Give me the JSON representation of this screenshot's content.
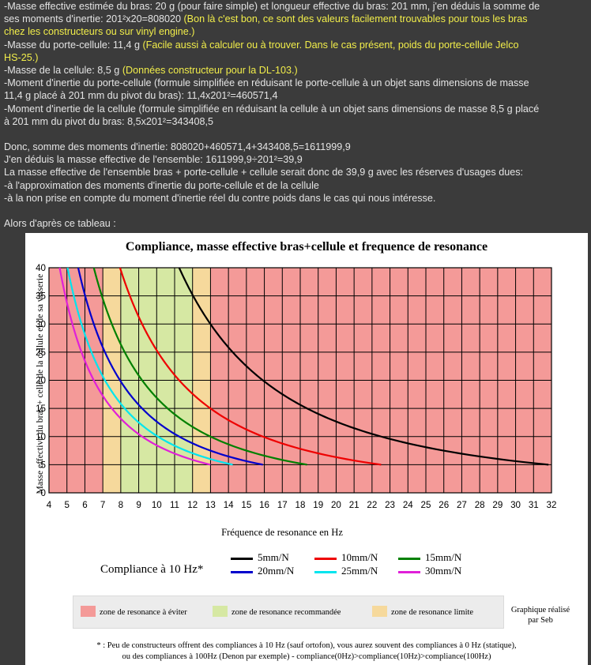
{
  "forum_text": [
    [
      {
        "t": "-Masse effective estimée du bras: 20 g (pour faire simple) et longueur effective du bras: 201 mm, j'en déduis la somme de",
        "hl": false
      }
    ],
    [
      {
        "t": "ses moments d'inertie: 201²x20=808020 ",
        "hl": false
      },
      {
        "t": "(Bon là c'est bon, ce sont des valeurs facilement trouvables pour tous les bras",
        "hl": true
      }
    ],
    [
      {
        "t": "chez les constructeurs ou sur vinyl engine.)",
        "hl": true
      }
    ],
    [
      {
        "t": "-Masse du porte-cellule: 11,4 g ",
        "hl": false
      },
      {
        "t": "(Facile aussi à calculer ou à trouver. Dans le cas présent, poids du porte-cellule Jelco",
        "hl": true
      }
    ],
    [
      {
        "t": "HS-25.)",
        "hl": true
      }
    ],
    [
      {
        "t": "-Masse de la cellule: 8,5 g ",
        "hl": false
      },
      {
        "t": "(Données constructeur pour la DL-103.)",
        "hl": true
      }
    ],
    [
      {
        "t": "-Moment d'inertie du porte-cellule (formule simplifiée en réduisant le porte-cellule à un objet sans dimensions de masse",
        "hl": false
      }
    ],
    [
      {
        "t": "11,4 g placé à 201 mm du pivot du bras): 11,4x201²=460571,4",
        "hl": false
      }
    ],
    [
      {
        "t": "-Moment d'inertie de la cellule (formule simplifiée en réduisant la cellule à un objet sans dimensions de masse 8,5 g placé",
        "hl": false
      }
    ],
    [
      {
        "t": "à 201 mm du pivot du bras: 8,5x201²=343408,5",
        "hl": false
      }
    ],
    [
      {
        "t": "",
        "hl": false
      }
    ],
    [
      {
        "t": "Donc, somme des moments d'inertie: 808020+460571,4+343408,5=1611999,9",
        "hl": false
      }
    ],
    [
      {
        "t": "J'en déduis la masse effective de l'ensemble: 1611999,9÷201²=39,9",
        "hl": false
      }
    ],
    [
      {
        "t": "La masse effective de l'ensemble bras + porte-cellule + cellule serait donc de 39,9 g avec les réserves d'usages dues:",
        "hl": false
      }
    ],
    [
      {
        "t": "-à l'approximation des moments d'inertie du porte-cellule et de la cellule",
        "hl": false
      }
    ],
    [
      {
        "t": "-à la non prise en compte du moment d'inertie réel du contre poids dans le cas qui nous intéresse.",
        "hl": false
      }
    ],
    [
      {
        "t": "",
        "hl": false
      }
    ],
    [
      {
        "t": "Alors d'après ce tableau :",
        "hl": false
      }
    ]
  ],
  "colors": {
    "forum_bg": "#3b3b3b",
    "forum_text": "#e4e4e4",
    "highlight": "#f2ee4a",
    "zone_avoid": "#f49a98",
    "zone_recommended": "#d6e8a3",
    "zone_limit": "#f6d99c"
  },
  "chart_data": {
    "type": "line",
    "title": "Compliance, masse effective bras+cellule et frequence de resonance",
    "xlabel": "Fréquence de resonance en Hz",
    "ylabel": "Masse effective du bras + celle de la cellule et de sa visserie",
    "xlim": [
      4,
      32
    ],
    "ylim": [
      0,
      40
    ],
    "x_ticks": [
      4,
      5,
      6,
      7,
      8,
      9,
      10,
      11,
      12,
      13,
      14,
      15,
      16,
      17,
      18,
      19,
      20,
      21,
      22,
      23,
      24,
      25,
      26,
      27,
      28,
      29,
      30,
      31,
      32
    ],
    "y_ticks": [
      0,
      5,
      10,
      15,
      20,
      25,
      30,
      35,
      40
    ],
    "grid": true,
    "legend_title": "Compliance à 10 Hz*",
    "zones": [
      {
        "label": "zone de resonance à éviter",
        "key": "avoid",
        "x_ranges": [
          [
            4,
            7
          ],
          [
            13,
            32
          ]
        ]
      },
      {
        "label": "zone de resonance recommandée",
        "key": "recommended",
        "x_ranges": [
          [
            8,
            12
          ]
        ]
      },
      {
        "label": "zone de resonance limite",
        "key": "limit",
        "x_ranges": [
          [
            7,
            8
          ],
          [
            12,
            13
          ]
        ]
      }
    ],
    "series": [
      {
        "name": "5mm/N",
        "compliance": 5,
        "color": "#000000"
      },
      {
        "name": "10mm/N",
        "compliance": 10,
        "color": "#ee0000"
      },
      {
        "name": "15mm/N",
        "compliance": 15,
        "color": "#008000"
      },
      {
        "name": "20mm/N",
        "compliance": 20,
        "color": "#0000cc"
      },
      {
        "name": "25mm/N",
        "compliance": 25,
        "color": "#00e5ee"
      },
      {
        "name": "30mm/N",
        "compliance": 30,
        "color": "#e020d8"
      }
    ],
    "series_mass_range": [
      5,
      40
    ]
  },
  "author_note": [
    "Graphique réalisé",
    "par Seb"
  ],
  "footnote": [
    "* : Peu de constructeurs offrent des compliances à 10 Hz (sauf ortofon), vous aurez souvent des compliances à 0 Hz (statique),",
    "ou des compliances à 100Hz (Denon par exemple) - compliance(0Hz)>compliance(10Hz)>compliance(100Hz)"
  ]
}
